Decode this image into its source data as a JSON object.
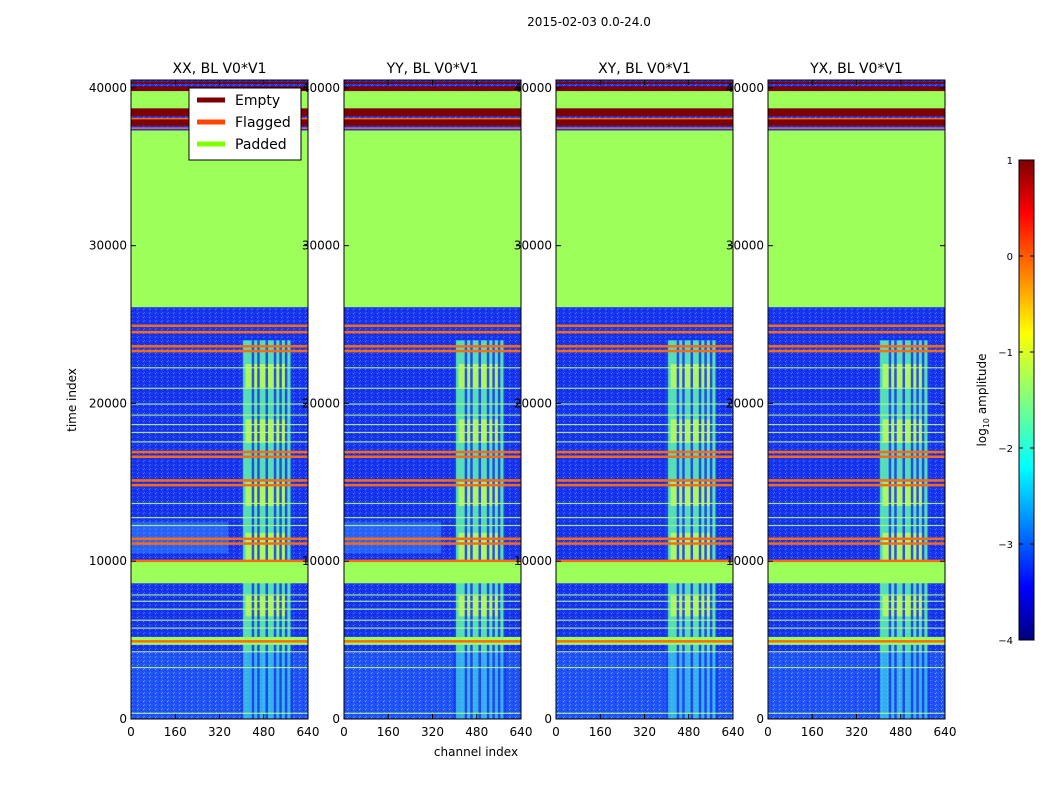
{
  "chart_data": {
    "type": "heatmap",
    "suptitle": "2015-02-03 0.0-24.0",
    "xlabel": "channel index",
    "ylabel": "time index",
    "xlim": [
      0,
      640
    ],
    "ylim": [
      0,
      40500
    ],
    "xticks": [
      0,
      160,
      320,
      480,
      640
    ],
    "yticks": [
      0,
      10000,
      20000,
      30000,
      40000
    ],
    "panels": [
      {
        "title": "XX, BL V0*V1"
      },
      {
        "title": "YY, BL V0*V1"
      },
      {
        "title": "XY, BL V0*V1"
      },
      {
        "title": "YX, BL V0*V1"
      }
    ],
    "legend": [
      {
        "label": "Empty",
        "color": "#7f0000"
      },
      {
        "label": "Flagged",
        "color": "#ff4500"
      },
      {
        "label": "Padded",
        "color": "#7fff00"
      }
    ],
    "legend_location": "upper-left of first panel",
    "colorbar": {
      "label": "log10 amplitude",
      "label_main": "log",
      "label_sub": "10",
      "label_rest": " amplitude",
      "range": [
        -4,
        1
      ],
      "ticks": [
        "1",
        "0",
        "−1",
        "−2",
        "−3",
        "−4"
      ],
      "tick_values": [
        1,
        0,
        -1,
        -2,
        -3,
        -4
      ]
    },
    "regions": {
      "padded_time_range": [
        26100,
        37300
      ],
      "empty_bands_time": [
        [
          38200,
          38700
        ],
        [
          37600,
          38000
        ],
        [
          39800,
          40100
        ],
        [
          40250,
          40400
        ]
      ],
      "padded_band_time": [
        [
          8600,
          10000
        ],
        [
          4700,
          5200
        ]
      ],
      "flagged_lines_time": [
        25000,
        24600,
        23700,
        23400,
        17000,
        16700,
        15200,
        14900,
        11500,
        11200,
        10100,
        5000
      ],
      "signal_channel_range": [
        400,
        580
      ],
      "signal_channel_lines": [
        400,
        440,
        460,
        490,
        520,
        540,
        560,
        580
      ]
    },
    "colors": {
      "background_noise": "#1e3cff",
      "padded": "#9cff5a",
      "empty": "#7f0000",
      "flagged": "#ff6a10",
      "signal": "#5cf0b0"
    }
  }
}
